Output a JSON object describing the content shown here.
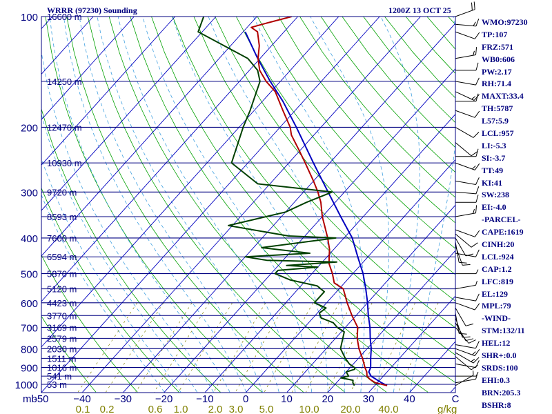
{
  "header": {
    "station": "WRRR (97230) Sounding",
    "time": "1200Z 13 OCT 25"
  },
  "colors": {
    "isobar": "#000080",
    "isotherm": "#0000c0",
    "dry_adiabat": "#00a000",
    "moist_adiabat": "#40a0e0",
    "mixing_ratio": "#808000",
    "temperature": "#b00000",
    "dewpoint": "#004000",
    "parcel": "#0000c0",
    "text": "#00007f"
  },
  "stats": [
    "WMO:97230",
    "TP:107",
    "FRZ:571",
    "WB0:606",
    "PW:2.17",
    "RH:71.4",
    "MAXT:33.4",
    "TH:5787",
    "L57:5.9",
    "LCL:957",
    "LI:-5.3",
    "SI:-3.7",
    "TT:49",
    "KI:41",
    "SW:238",
    "EI:-4.0",
    "-PARCEL-",
    "CAPE:1619",
    "CINH:20",
    "LCL:924",
    "CAP:1.2",
    "LFC:819",
    "EL:129",
    "MPL:79",
    "-WIND-",
    "STM:132/11",
    "HEL:12",
    "SHR+:0.0",
    "SRDS:100",
    "EHI:0.3",
    "BRN:205.3",
    "BSHR:8"
  ],
  "chart_data": {
    "type": "line",
    "diagram": "skew-T log-P",
    "y_axis_label": "mb",
    "pressure_levels_mb": [
      100,
      200,
      300,
      400,
      500,
      600,
      700,
      800,
      900,
      1000
    ],
    "pressure_tick_labels": [
      "100",
      "200",
      "300",
      "400",
      "500",
      "600",
      "700",
      "800",
      "900",
      "1000"
    ],
    "temperature_ticks_c": [
      -50,
      -40,
      -30,
      -20,
      -10,
      0,
      10,
      20,
      30,
      40
    ],
    "temperature_tick_labels": [
      "-50",
      "−40",
      "−30",
      "−20",
      "−10",
      "0",
      "10",
      "20",
      "30",
      "40"
    ],
    "mixing_ratio_ticks_gkg": [
      0.1,
      0.2,
      0.6,
      1.0,
      2.0,
      3.0,
      5.0,
      10.0,
      20.0,
      40.0
    ],
    "mixing_ratio_tick_labels": [
      "0.1",
      "0.2",
      "0.6",
      "1.0",
      "2.0",
      "3.0",
      "5.0",
      "10.0",
      "20.0",
      "40.0"
    ],
    "mixing_ratio_unit": "g/kg",
    "corner_label": "C",
    "height_labels": [
      {
        "p": 100,
        "label": "16600 m"
      },
      {
        "p": 150,
        "label": "14250 m"
      },
      {
        "p": 200,
        "label": "12470 m"
      },
      {
        "p": 250,
        "label": "10930 m"
      },
      {
        "p": 300,
        "label": "9720 m"
      },
      {
        "p": 350,
        "label": "8593 m"
      },
      {
        "p": 400,
        "label": "7600 m"
      },
      {
        "p": 450,
        "label": "6594 m"
      },
      {
        "p": 500,
        "label": "5870 m"
      },
      {
        "p": 550,
        "label": "5120 m"
      },
      {
        "p": 600,
        "label": "4423 m"
      },
      {
        "p": 650,
        "label": "3770 m"
      },
      {
        "p": 700,
        "label": "3169 m"
      },
      {
        "p": 750,
        "label": "2579 m"
      },
      {
        "p": 800,
        "label": "2030 m"
      },
      {
        "p": 850,
        "label": "1511 m"
      },
      {
        "p": 900,
        "label": "1016 m"
      },
      {
        "p": 950,
        "label": "541 m"
      },
      {
        "p": 1000,
        "label": "53 m"
      }
    ],
    "temperature_profile": [
      {
        "p": 1008,
        "t": 33.0
      },
      {
        "p": 990,
        "t": 29.5
      },
      {
        "p": 970,
        "t": 27.5
      },
      {
        "p": 950,
        "t": 26.0
      },
      {
        "p": 925,
        "t": 25.0
      },
      {
        "p": 900,
        "t": 23.6
      },
      {
        "p": 850,
        "t": 21.0
      },
      {
        "p": 800,
        "t": 18.0
      },
      {
        "p": 750,
        "t": 15.3
      },
      {
        "p": 700,
        "t": 13.0
      },
      {
        "p": 650,
        "t": 9.0
      },
      {
        "p": 600,
        "t": 5.0
      },
      {
        "p": 550,
        "t": 1.0
      },
      {
        "p": 530,
        "t": -2.5
      },
      {
        "p": 500,
        "t": -5.0
      },
      {
        "p": 470,
        "t": -8.0
      },
      {
        "p": 450,
        "t": -9.5
      },
      {
        "p": 430,
        "t": -11.0
      },
      {
        "p": 400,
        "t": -14.0
      },
      {
        "p": 370,
        "t": -17.5
      },
      {
        "p": 350,
        "t": -20.0
      },
      {
        "p": 320,
        "t": -23.5
      },
      {
        "p": 300,
        "t": -26.5
      },
      {
        "p": 280,
        "t": -30.0
      },
      {
        "p": 250,
        "t": -36.0
      },
      {
        "p": 230,
        "t": -40.5
      },
      {
        "p": 210,
        "t": -45.5
      },
      {
        "p": 200,
        "t": -47.5
      },
      {
        "p": 180,
        "t": -53.0
      },
      {
        "p": 160,
        "t": -59.0
      },
      {
        "p": 150,
        "t": -63.5
      },
      {
        "p": 140,
        "t": -67.5
      },
      {
        "p": 130,
        "t": -70.5
      },
      {
        "p": 120,
        "t": -73.0
      },
      {
        "p": 110,
        "t": -76.5
      },
      {
        "p": 107,
        "t": -79.0
      },
      {
        "p": 104,
        "t": -76.0
      },
      {
        "p": 100,
        "t": -71.5
      }
    ],
    "dewpoint_profile": [
      {
        "p": 1008,
        "td": 25.0
      },
      {
        "p": 990,
        "td": 24.0
      },
      {
        "p": 975,
        "td": 23.5
      },
      {
        "p": 960,
        "td": 20.0
      },
      {
        "p": 950,
        "td": 21.5
      },
      {
        "p": 925,
        "td": 20.0
      },
      {
        "p": 910,
        "td": 21.5
      },
      {
        "p": 900,
        "td": 21.0
      },
      {
        "p": 880,
        "td": 19.0
      },
      {
        "p": 850,
        "td": 16.8
      },
      {
        "p": 800,
        "td": 13.5
      },
      {
        "p": 720,
        "td": 10.7
      },
      {
        "p": 700,
        "td": 8.0
      },
      {
        "p": 680,
        "td": 6.0
      },
      {
        "p": 660,
        "td": 2.0
      },
      {
        "p": 640,
        "td": 0.5
      },
      {
        "p": 620,
        "td": 1.0
      },
      {
        "p": 600,
        "td": -3.0
      },
      {
        "p": 560,
        "td": -3.0
      },
      {
        "p": 540,
        "td": -6.0
      },
      {
        "p": 520,
        "td": -14.0
      },
      {
        "p": 500,
        "td": -19.0
      },
      {
        "p": 490,
        "td": -19.0
      },
      {
        "p": 480,
        "td": -10.0
      },
      {
        "p": 475,
        "td": -18.0
      },
      {
        "p": 465,
        "td": -6.5
      },
      {
        "p": 460,
        "td": -24.0
      },
      {
        "p": 450,
        "td": -30.0
      },
      {
        "p": 440,
        "td": -15.0
      },
      {
        "p": 425,
        "td": -28.0
      },
      {
        "p": 400,
        "td": -12.0
      },
      {
        "p": 395,
        "td": -24.0
      },
      {
        "p": 370,
        "td": -41.0
      },
      {
        "p": 340,
        "td": -30.0
      },
      {
        "p": 320,
        "td": -27.0
      },
      {
        "p": 300,
        "td": -23.0
      },
      {
        "p": 285,
        "td": -43.0
      },
      {
        "p": 250,
        "td": -54.0
      },
      {
        "p": 200,
        "td": -59.0
      },
      {
        "p": 180,
        "td": -61.0
      },
      {
        "p": 150,
        "td": -65.0
      },
      {
        "p": 140,
        "td": -68.0
      },
      {
        "p": 130,
        "td": -73.0
      },
      {
        "p": 110,
        "td": -91.0
      },
      {
        "p": 100,
        "td": -93.0
      }
    ],
    "parcel_profile": [
      {
        "p": 1008,
        "t": 33.0
      },
      {
        "p": 990,
        "t": 31.0
      },
      {
        "p": 970,
        "t": 29.0
      },
      {
        "p": 950,
        "t": 27.0
      },
      {
        "p": 925,
        "t": 25.5
      },
      {
        "p": 900,
        "t": 25.0
      },
      {
        "p": 850,
        "t": 23.0
      },
      {
        "p": 800,
        "t": 21.0
      },
      {
        "p": 750,
        "t": 18.5
      },
      {
        "p": 700,
        "t": 16.0
      },
      {
        "p": 650,
        "t": 13.0
      },
      {
        "p": 600,
        "t": 10.0
      },
      {
        "p": 550,
        "t": 6.5
      },
      {
        "p": 500,
        "t": 2.5
      },
      {
        "p": 450,
        "t": -2.5
      },
      {
        "p": 400,
        "t": -8.0
      },
      {
        "p": 350,
        "t": -15.5
      },
      {
        "p": 300,
        "t": -24.0
      },
      {
        "p": 250,
        "t": -34.0
      },
      {
        "p": 200,
        "t": -46.0
      },
      {
        "p": 170,
        "t": -55.0
      },
      {
        "p": 150,
        "t": -62.5
      },
      {
        "p": 129,
        "t": -71.0
      },
      {
        "p": 110,
        "t": -79.5
      }
    ],
    "wind_barbs": [
      {
        "p": 100,
        "dir": 70,
        "kt": 20
      },
      {
        "p": 105,
        "dir": 95,
        "kt": 15
      },
      {
        "p": 110,
        "dir": 110,
        "kt": 10
      },
      {
        "p": 130,
        "dir": 80,
        "kt": 15
      },
      {
        "p": 140,
        "dir": 90,
        "kt": 10
      },
      {
        "p": 150,
        "dir": 100,
        "kt": 10
      },
      {
        "p": 160,
        "dir": 115,
        "kt": 15
      },
      {
        "p": 170,
        "dir": 90,
        "kt": 10
      },
      {
        "p": 180,
        "dir": 110,
        "kt": 10
      },
      {
        "p": 200,
        "dir": 120,
        "kt": 10
      },
      {
        "p": 220,
        "dir": 130,
        "kt": 10
      },
      {
        "p": 240,
        "dir": 90,
        "kt": 10
      },
      {
        "p": 250,
        "dir": 110,
        "kt": 15
      },
      {
        "p": 280,
        "dir": 100,
        "kt": 10
      },
      {
        "p": 300,
        "dir": 95,
        "kt": 10
      },
      {
        "p": 320,
        "dir": 90,
        "kt": 10
      },
      {
        "p": 350,
        "dir": 80,
        "kt": 15
      },
      {
        "p": 380,
        "dir": 110,
        "kt": 10
      },
      {
        "p": 390,
        "dir": 130,
        "kt": 10
      },
      {
        "p": 400,
        "dir": 150,
        "kt": 10
      },
      {
        "p": 410,
        "dir": 170,
        "kt": 10
      },
      {
        "p": 420,
        "dir": 160,
        "kt": 10
      },
      {
        "p": 440,
        "dir": 100,
        "kt": 10
      },
      {
        "p": 500,
        "dir": 90,
        "kt": 5
      },
      {
        "p": 550,
        "dir": 80,
        "kt": 5
      },
      {
        "p": 580,
        "dir": 100,
        "kt": 10
      },
      {
        "p": 600,
        "dir": 110,
        "kt": 10
      },
      {
        "p": 620,
        "dir": 150,
        "kt": 10
      },
      {
        "p": 640,
        "dir": 170,
        "kt": 10
      },
      {
        "p": 660,
        "dir": 160,
        "kt": 10
      },
      {
        "p": 680,
        "dir": 150,
        "kt": 10
      },
      {
        "p": 700,
        "dir": 140,
        "kt": 10
      },
      {
        "p": 780,
        "dir": 100,
        "kt": 10
      },
      {
        "p": 800,
        "dir": 110,
        "kt": 15
      },
      {
        "p": 820,
        "dir": 120,
        "kt": 15
      },
      {
        "p": 840,
        "dir": 130,
        "kt": 10
      },
      {
        "p": 880,
        "dir": 100,
        "kt": 10
      },
      {
        "p": 950,
        "dir": 90,
        "kt": 5
      },
      {
        "p": 990,
        "dir": 80,
        "kt": 5
      },
      {
        "p": 1008,
        "dir": 60,
        "kt": 5
      }
    ]
  }
}
